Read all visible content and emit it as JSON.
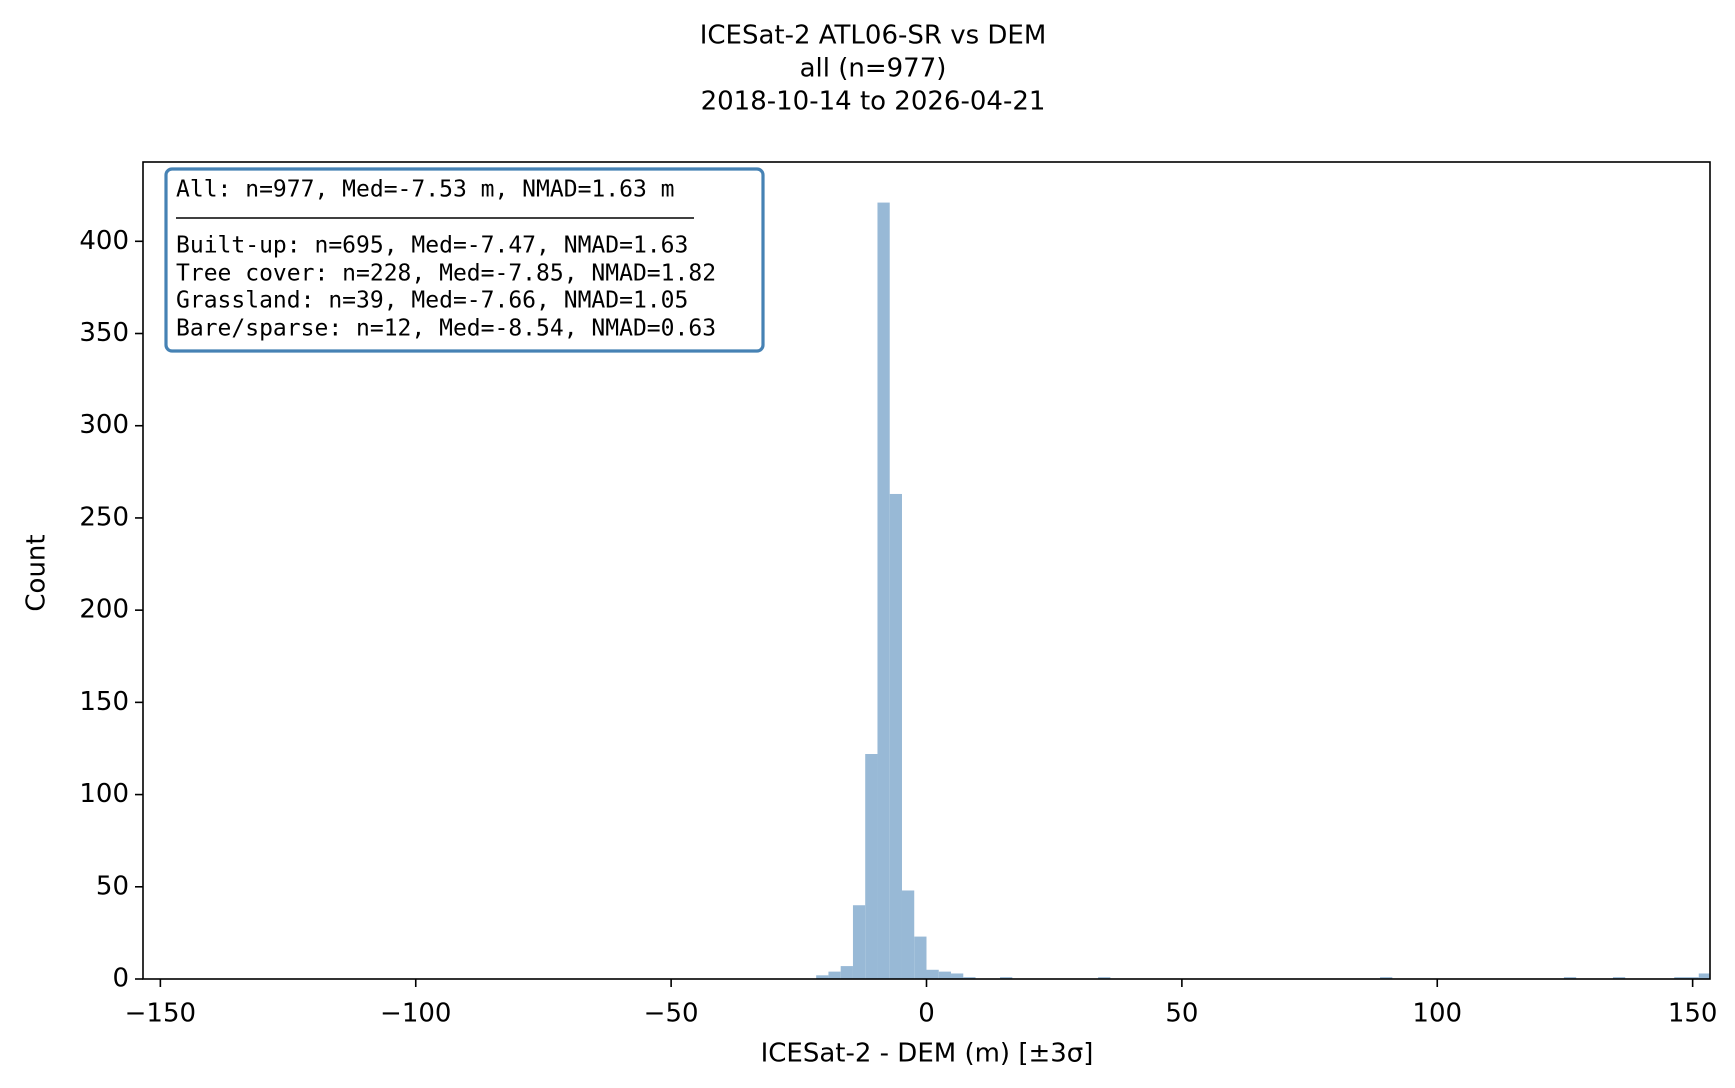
{
  "chart_data": {
    "type": "histogram",
    "title": [
      "ICESat-2 ATL06-SR vs DEM",
      "all (n=977)",
      "2018-10-14 to 2026-04-21"
    ],
    "xlabel": "ICESat-2 - DEM (m) [±3σ]",
    "ylabel": "Count",
    "annotation": [
      "All: n=977, Med=-7.53 m, NMAD=1.63 m",
      "Built-up: n=695, Med=-7.47, NMAD=1.63",
      "Tree cover: n=228, Med=-7.85, NMAD=1.82",
      "Grassland: n=39, Med=-7.66, NMAD=1.05",
      "Bare/sparse: n=12, Med=-8.54, NMAD=0.63"
    ],
    "color": "#98b9d6",
    "xlim": [
      -153.4,
      153.4
    ],
    "ylim": [
      0,
      443
    ],
    "xticks": [
      {
        "value": -150,
        "label": "−150"
      },
      {
        "value": -100,
        "label": "−100"
      },
      {
        "value": -50,
        "label": "−50"
      },
      0,
      50,
      100,
      150
    ],
    "yticks": [
      0,
      50,
      100,
      150,
      200,
      250,
      300,
      350,
      400
    ],
    "bins": [
      -153.6,
      -151.2,
      -148.8,
      -146.4,
      -144,
      -141.6,
      -139.2,
      -136.8,
      -134.4,
      -132,
      -129.6,
      -127.2,
      -124.8,
      -122.4,
      -120,
      -117.6,
      -115.2,
      -112.8,
      -110.4,
      -108,
      -105.6,
      -103.2,
      -100.8,
      -98.4,
      -96,
      -93.6,
      -91.2,
      -88.8,
      -86.4,
      -84,
      -81.6,
      -79.2,
      -76.8,
      -74.4,
      -72,
      -69.6,
      -67.2,
      -64.8,
      -62.4,
      -60,
      -57.6,
      -55.2,
      -52.8,
      -50.4,
      -48,
      -45.6,
      -43.2,
      -40.8,
      -38.4,
      -36,
      -33.6,
      -31.2,
      -28.8,
      -26.4,
      -24,
      -21.6,
      -19.2,
      -16.8,
      -14.4,
      -12,
      -9.6,
      -7.2,
      -4.8,
      -2.4,
      0,
      2.4,
      4.8,
      7.2,
      9.6,
      12,
      14.4,
      16.8,
      19.2,
      21.6,
      24,
      26.4,
      28.8,
      31.2,
      33.6,
      36,
      38.4,
      40.8,
      43.2,
      45.6,
      48,
      50.4,
      52.8,
      55.2,
      57.6,
      60,
      62.4,
      64.8,
      67.2,
      69.6,
      72,
      74.4,
      76.8,
      79.2,
      81.6,
      84,
      86.4,
      88.8,
      91.2,
      93.6,
      96,
      98.4,
      100.8,
      103.2,
      105.6,
      108,
      110.4,
      112.8,
      115.2,
      117.6,
      120,
      122.4,
      124.8,
      127.2,
      129.6,
      132,
      134.4,
      136.8,
      139.2,
      141.6,
      144,
      146.4,
      148.8,
      151.2,
      153.6
    ],
    "counts": [
      0,
      0,
      0,
      0,
      0,
      0,
      0,
      0,
      0,
      0,
      0,
      0,
      0,
      0,
      0,
      0,
      0,
      0,
      0,
      0,
      0,
      0,
      0,
      0,
      0,
      0,
      0,
      0,
      0,
      0,
      0,
      0,
      0,
      0,
      0,
      0,
      0,
      0,
      0,
      0,
      0,
      0,
      0,
      0,
      0,
      0,
      0,
      0,
      0,
      0,
      0,
      0,
      0,
      0,
      0,
      2,
      4,
      7,
      40,
      122,
      421,
      263,
      48,
      23,
      5,
      4,
      3,
      1,
      0,
      0,
      1,
      0,
      0,
      0,
      0,
      0,
      0,
      0,
      1,
      0,
      0,
      0,
      0,
      0,
      0,
      0,
      0,
      0,
      0,
      0,
      0,
      0,
      0,
      0,
      0,
      0,
      0,
      0,
      0,
      0,
      0,
      1,
      0,
      0,
      0,
      0,
      0,
      0,
      0,
      0,
      0,
      0,
      0,
      0,
      0,
      0,
      1,
      0,
      0,
      0,
      1,
      0,
      0,
      0,
      0,
      1,
      1,
      3
    ]
  }
}
